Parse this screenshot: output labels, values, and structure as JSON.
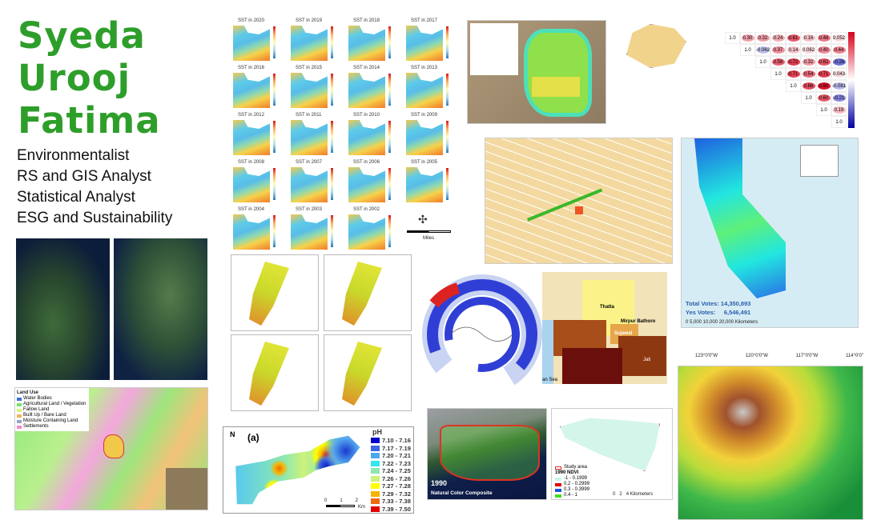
{
  "profile": {
    "name_lines": [
      "Syeda",
      "Urooj",
      "Fatima"
    ],
    "roles": [
      "Environmentalist",
      "RS and GIS Analyst",
      "Statistical Analyst",
      "ESG and Sustainability"
    ],
    "accent_color": "#2e9e2a"
  },
  "land_use_map": {
    "legend_title": "Land Use",
    "legend": [
      {
        "label": "Water Bodies",
        "color": "#3b6fd6"
      },
      {
        "label": "Agricultural Land / Vegetation",
        "color": "#7be36a"
      },
      {
        "label": "Fallow Land",
        "color": "#d9f27a"
      },
      {
        "label": "Built Up / Bare Land",
        "color": "#f0b35a"
      },
      {
        "label": "Moisture Containing Land",
        "color": "#9aa0c8"
      },
      {
        "label": "Settlements",
        "color": "#f08bd0"
      }
    ]
  },
  "ph_map": {
    "panel_label": "(a)",
    "legend_title": "pH",
    "legend": [
      {
        "label": "7.10 - 7.16",
        "color": "#0000cc"
      },
      {
        "label": "7.17 - 7.19",
        "color": "#3a66e0"
      },
      {
        "label": "7.20 - 7.21",
        "color": "#4aa8ea"
      },
      {
        "label": "7.22 - 7.23",
        "color": "#33e6ee"
      },
      {
        "label": "7.24 - 7.25",
        "color": "#8ee8b0"
      },
      {
        "label": "7.26 - 7.26",
        "color": "#cdf27a"
      },
      {
        "label": "7.27 - 7.28",
        "color": "#ffff00"
      },
      {
        "label": "7.29 - 7.32",
        "color": "#f5b400"
      },
      {
        "label": "7.33 - 7.38",
        "color": "#ee6a10"
      },
      {
        "label": "7.39 - 7.50",
        "color": "#e00000"
      }
    ],
    "scale_ticks": [
      "0",
      "1",
      "2"
    ],
    "scale_unit": "Km",
    "north": "N"
  },
  "landsat_panel": {
    "year": "1990",
    "caption": "Natural Color Composite"
  },
  "ndvi_panel": {
    "study_area": "Study area",
    "legend_title": "1990 NDVI",
    "legend": [
      {
        "label": "-1 - 0.1999",
        "color": "#c8f5e8"
      },
      {
        "label": "0.2 - 0.2999",
        "color": "#e00000"
      },
      {
        "label": "0.3 - 0.3999",
        "color": "#1a55e0"
      },
      {
        "label": "0.4 - 1",
        "color": "#44dd22"
      }
    ],
    "scale_ticks": [
      "0",
      "2",
      "4"
    ],
    "scale_unit": "Kilometers"
  },
  "thatta_map": {
    "labels": [
      "Thatta",
      "Mirpur Bathoro",
      "Sujawal",
      "Jati"
    ],
    "sea_label": "an Sea"
  },
  "california_map": {
    "total_votes_label": "Total Votes:",
    "total_votes": "14,350,893",
    "yes_votes_label": "Yes Votes:",
    "yes_votes": "6,546,491",
    "scale": "0    5,000   10,000          20,000 Kilometers",
    "lon_ticks": [
      "123°0'0\"W",
      "120°0'0\"W",
      "117°0'0\"W",
      "114°0'0\""
    ]
  },
  "correlation_matrix": {
    "rows": [
      [
        "1.0",
        "0.30",
        "0.32",
        "0.24",
        "0.61",
        "0.16",
        "0.48",
        "0.052"
      ],
      [
        "1.0",
        "-0.062",
        "0.37",
        "0.14",
        "0.062",
        "0.40",
        "0.44"
      ],
      [
        "1.0",
        "0.58",
        "0.72",
        "0.32",
        "0.62",
        "-0.26"
      ],
      [
        "1.0",
        "0.71",
        "0.54",
        "0.71",
        "0.043"
      ],
      [
        "1.0",
        "0.66",
        "0.90",
        "-0.081"
      ],
      [
        "1.0",
        "0.60",
        "-0.21"
      ],
      [
        "1.0",
        "0.19"
      ],
      [
        "1.0"
      ]
    ],
    "colorbar": {
      "low": "#0000a0",
      "mid": "#ffffff",
      "high": "#d7001a"
    }
  },
  "sst_grid": {
    "titles": [
      "SST in 2020",
      "SST in 2019",
      "SST in 2018",
      "SST in 2017",
      "SST in 2016",
      "SST in 2015",
      "SST in 2014",
      "SST in 2013",
      "SST in 2012",
      "SST in 2011",
      "SST in 2010",
      "SST in 2009",
      "SST in 2008",
      "SST in 2007",
      "SST in 2006",
      "SST in 2005",
      "SST in 2004",
      "SST in 2003",
      "SST in 2002"
    ],
    "scale_label": "Miles"
  }
}
